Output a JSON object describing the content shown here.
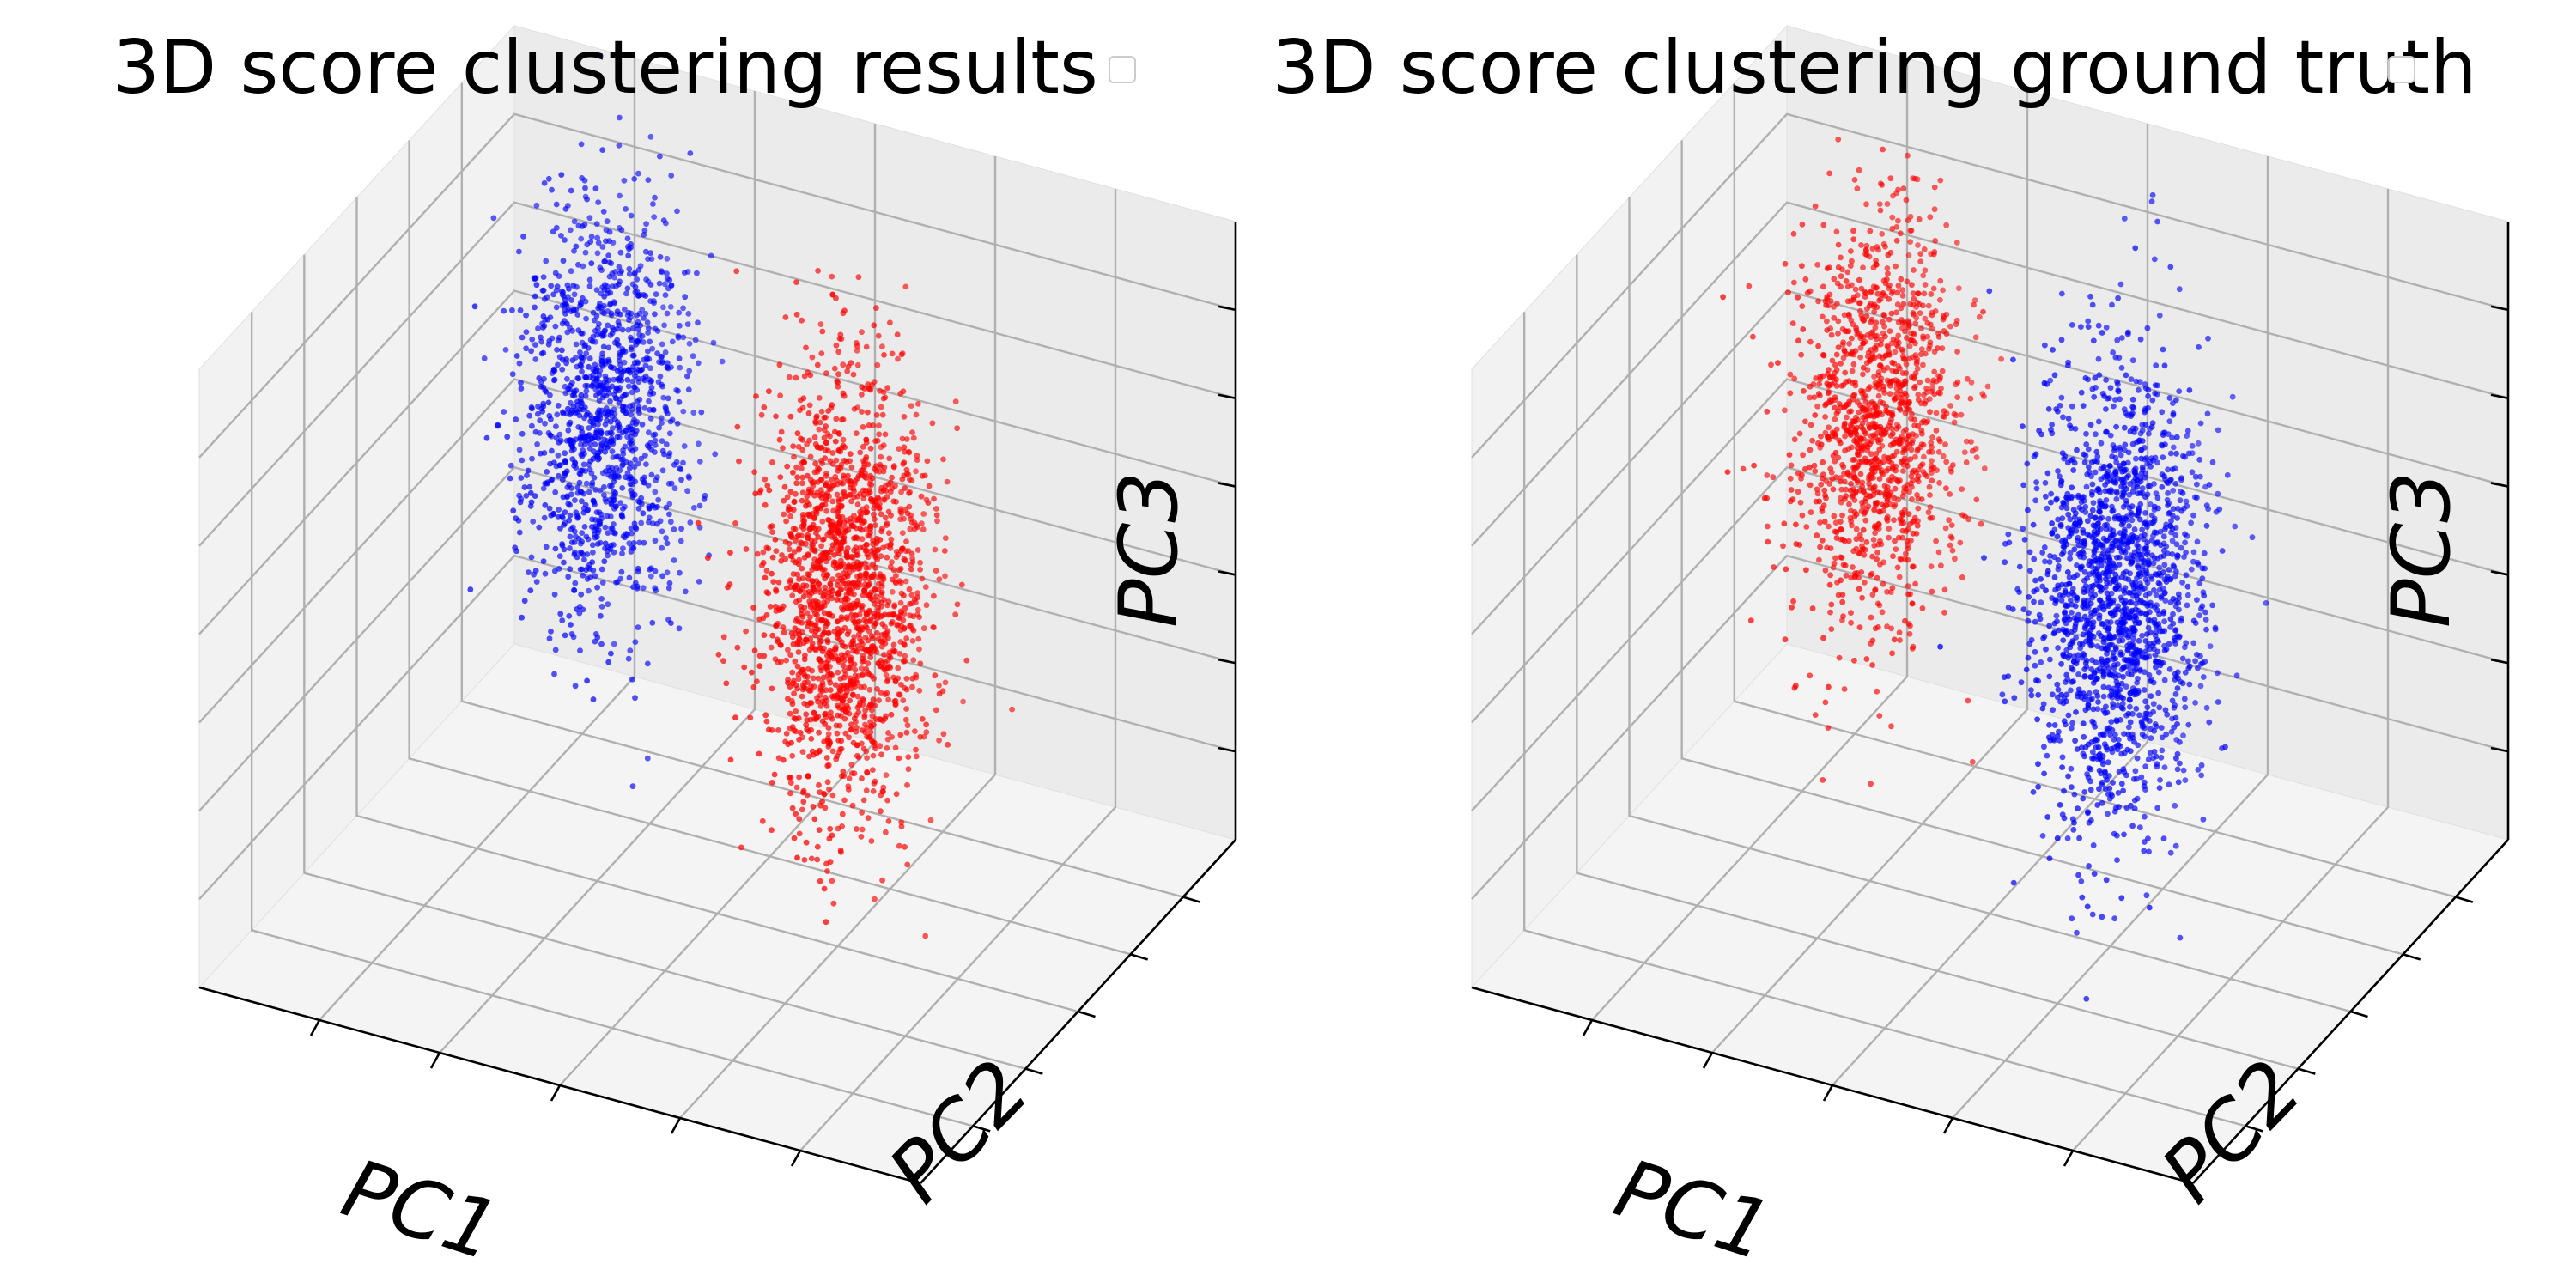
{
  "chart_data": [
    {
      "type": "scatter",
      "projection": "3d",
      "title": "3D score clustering results",
      "xlabel": "PC1",
      "ylabel": "PC2",
      "zlabel": "PC3",
      "tick_labels_visible": false,
      "grid": true,
      "legend": {
        "placement": "upper-right",
        "entries": []
      },
      "colors": {
        "cluster_a": "#0000ff",
        "cluster_b": "#ff0000"
      },
      "series": [
        {
          "color": "#0000ff",
          "clusters": [
            {
              "center": [
                0.22,
                0.78,
                0.56
              ],
              "spread": [
                0.05,
                0.07,
                0.16
              ],
              "count": 1300
            }
          ]
        },
        {
          "color": "#ff0000",
          "clusters": [
            {
              "center": [
                0.58,
                0.72,
                0.42
              ],
              "spread": [
                0.05,
                0.07,
                0.18
              ],
              "count": 1800
            }
          ]
        }
      ]
    },
    {
      "type": "scatter",
      "projection": "3d",
      "title": "3D score clustering ground truth",
      "xlabel": "PC1",
      "ylabel": "PC2",
      "zlabel": "PC3",
      "tick_labels_visible": false,
      "grid": true,
      "legend": {
        "placement": "upper-right",
        "entries": []
      },
      "colors": {
        "cluster_a": "#ff0000",
        "cluster_b": "#0000ff"
      },
      "series": [
        {
          "color": "#ff0000",
          "clusters": [
            {
              "center": [
                0.22,
                0.78,
                0.56
              ],
              "spread": [
                0.05,
                0.07,
                0.16
              ],
              "count": 1300
            }
          ]
        },
        {
          "color": "#0000ff",
          "clusters": [
            {
              "center": [
                0.58,
                0.72,
                0.42
              ],
              "spread": [
                0.05,
                0.07,
                0.18
              ],
              "count": 1800
            }
          ]
        }
      ]
    }
  ]
}
